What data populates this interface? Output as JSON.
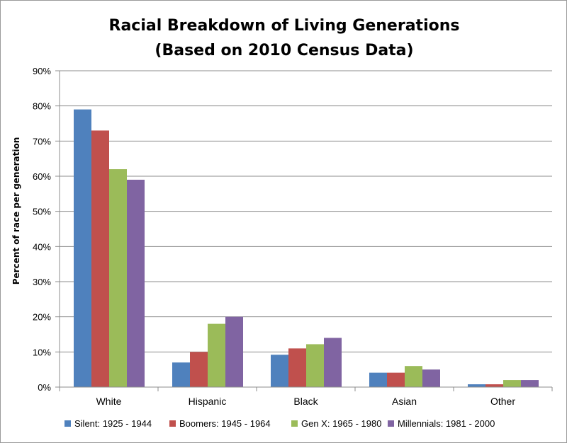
{
  "chart_data": {
    "type": "bar",
    "title": "Racial Breakdown of Living Generations",
    "subtitle": "(Based on 2010 Census Data)",
    "xlabel": "",
    "ylabel": "Percent of race per generation",
    "ylim": [
      0,
      90
    ],
    "yticks": [
      0,
      10,
      20,
      30,
      40,
      50,
      60,
      70,
      80,
      90
    ],
    "ytick_labels": [
      "0%",
      "10%",
      "20%",
      "30%",
      "40%",
      "50%",
      "60%",
      "70%",
      "80%",
      "90%"
    ],
    "categories": [
      "White",
      "Hispanic",
      "Black",
      "Asian",
      "Other"
    ],
    "series": [
      {
        "name": "Silent: 1925 - 1944",
        "color": "#4f81bd",
        "values": [
          79,
          7,
          9.2,
          4.1,
          0.8
        ]
      },
      {
        "name": "Boomers: 1945 - 1964",
        "color": "#c0504d",
        "values": [
          73,
          10,
          11,
          4.1,
          0.8
        ]
      },
      {
        "name": "Gen X: 1965 - 1980",
        "color": "#9bbb59",
        "values": [
          62,
          18,
          12.2,
          6,
          2
        ]
      },
      {
        "name": "Millennials: 1981 - 2000",
        "color": "#8064a2",
        "values": [
          59,
          20,
          14,
          5,
          2
        ]
      }
    ],
    "grid": true,
    "legend_position": "bottom"
  }
}
